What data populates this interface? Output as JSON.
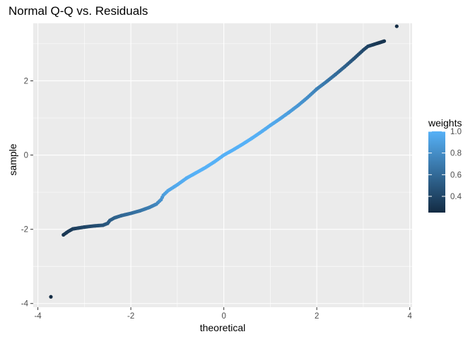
{
  "chart_data": {
    "type": "scatter",
    "title": "Normal Q-Q vs. Residuals",
    "xlabel": "theoretical",
    "ylabel": "sample",
    "xlim": [
      -4.1,
      4.05
    ],
    "ylim": [
      -4.1,
      3.55
    ],
    "xticks": [
      -4,
      -2,
      0,
      2,
      4
    ],
    "yticks": [
      -4,
      -2,
      0,
      2
    ],
    "grid": true,
    "legend": {
      "title": "weights",
      "position": "right",
      "min": 0.25,
      "max": 1.0,
      "ticks": [
        0.4,
        0.6,
        0.8,
        1.0
      ],
      "tick_labels": [
        "0.4",
        "0.6",
        "0.8",
        "1.0"
      ],
      "low_color": "#132B43",
      "high_color": "#56B1F7"
    },
    "series": [
      {
        "points": [
          [
            -3.72,
            -3.82,
            0.25
          ],
          [
            -3.45,
            -2.15,
            0.3
          ],
          [
            -3.35,
            -2.06,
            0.33
          ],
          [
            -3.25,
            -1.99,
            0.35
          ],
          [
            -3.15,
            -1.97,
            0.37
          ],
          [
            -3.0,
            -1.94,
            0.4
          ],
          [
            -2.8,
            -1.91,
            0.43
          ],
          [
            -2.6,
            -1.89,
            0.47
          ],
          [
            -2.5,
            -1.84,
            0.5
          ],
          [
            -2.45,
            -1.76,
            0.52
          ],
          [
            -2.35,
            -1.69,
            0.55
          ],
          [
            -2.2,
            -1.63,
            0.58
          ],
          [
            -2.0,
            -1.57,
            0.62
          ],
          [
            -1.8,
            -1.5,
            0.66
          ],
          [
            -1.6,
            -1.41,
            0.71
          ],
          [
            -1.45,
            -1.32,
            0.76
          ],
          [
            -1.35,
            -1.2,
            0.82
          ],
          [
            -1.3,
            -1.08,
            0.88
          ],
          [
            -1.2,
            -0.96,
            0.93
          ],
          [
            -1.0,
            -0.8,
            0.96
          ],
          [
            -0.8,
            -0.62,
            0.98
          ],
          [
            -0.6,
            -0.48,
            1.0
          ],
          [
            -0.4,
            -0.34,
            1.0
          ],
          [
            -0.2,
            -0.18,
            1.0
          ],
          [
            0.0,
            0.0,
            1.0
          ],
          [
            0.2,
            0.14,
            1.0
          ],
          [
            0.4,
            0.29,
            1.0
          ],
          [
            0.6,
            0.45,
            1.0
          ],
          [
            0.8,
            0.62,
            0.98
          ],
          [
            1.0,
            0.8,
            0.96
          ],
          [
            1.2,
            0.97,
            0.93
          ],
          [
            1.4,
            1.15,
            0.89
          ],
          [
            1.6,
            1.34,
            0.85
          ],
          [
            1.8,
            1.55,
            0.8
          ],
          [
            2.0,
            1.78,
            0.74
          ],
          [
            2.2,
            1.97,
            0.68
          ],
          [
            2.4,
            2.17,
            0.62
          ],
          [
            2.6,
            2.38,
            0.55
          ],
          [
            2.8,
            2.6,
            0.48
          ],
          [
            3.0,
            2.83,
            0.42
          ],
          [
            3.1,
            2.93,
            0.38
          ],
          [
            3.2,
            2.97,
            0.35
          ],
          [
            3.3,
            3.01,
            0.32
          ],
          [
            3.45,
            3.07,
            0.3
          ],
          [
            3.72,
            3.47,
            0.26
          ]
        ]
      }
    ]
  }
}
